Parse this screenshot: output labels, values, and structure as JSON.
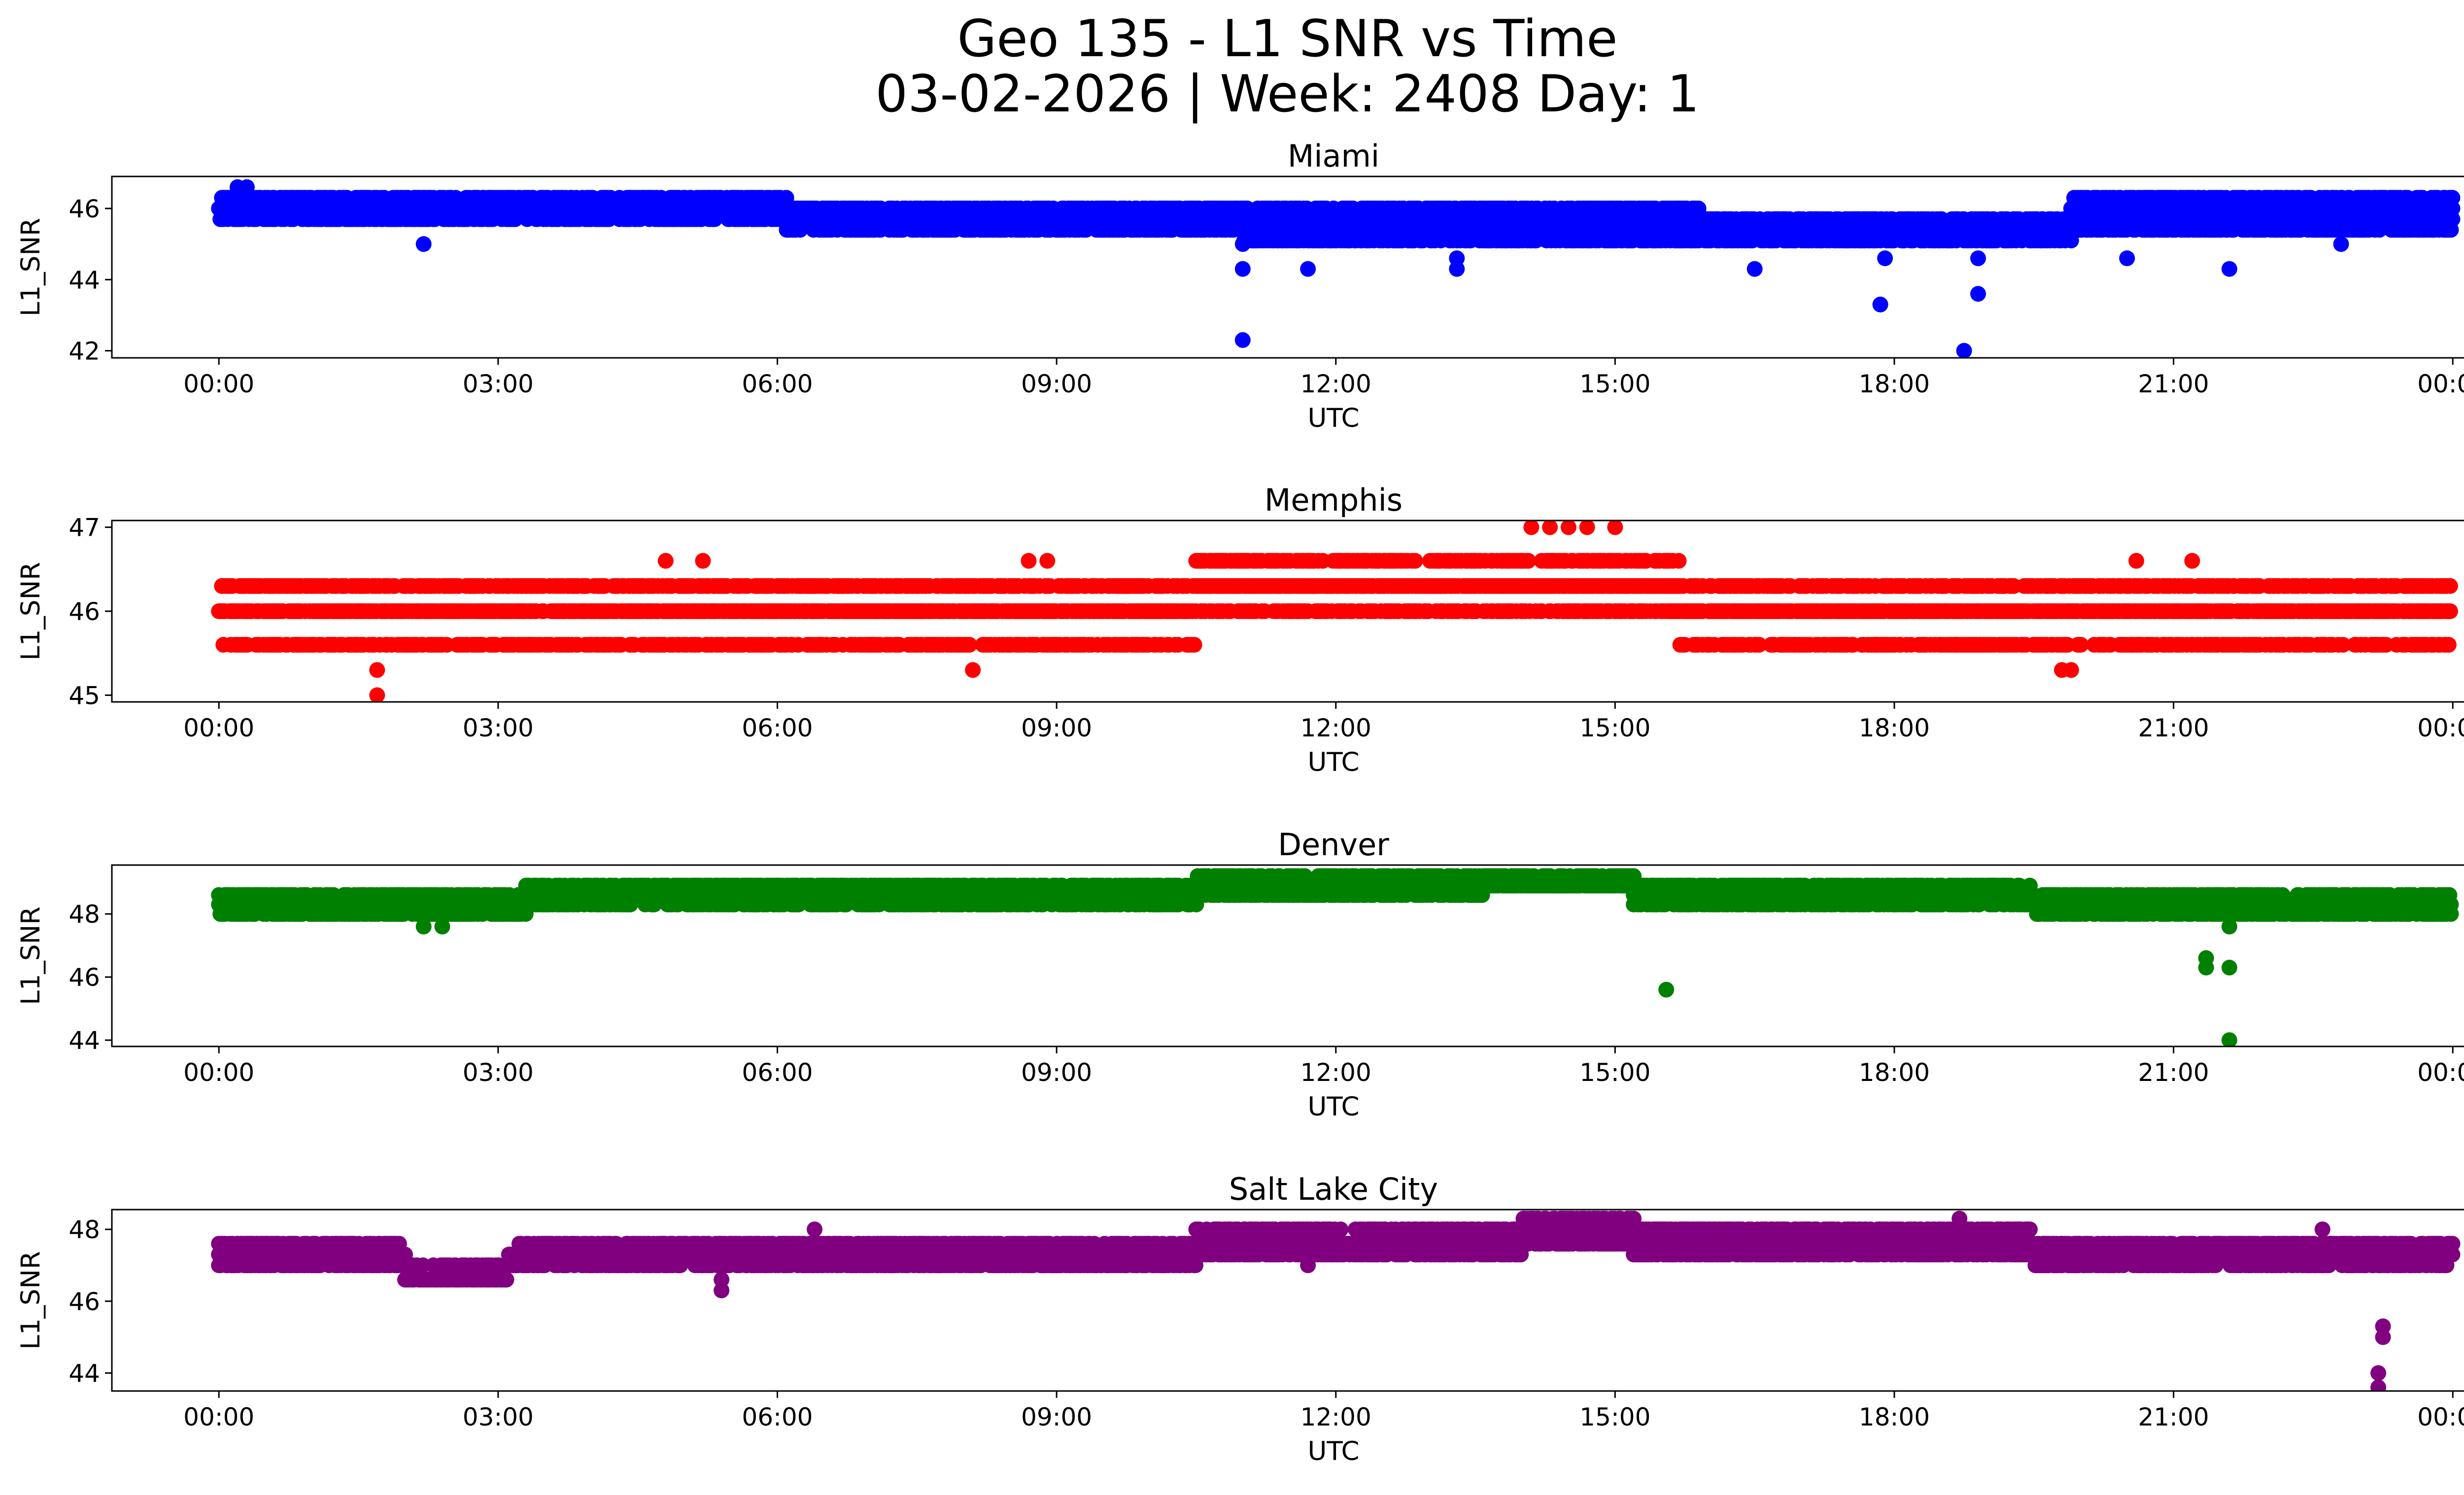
{
  "figure": {
    "title_line1": "Geo 135 - L1 SNR vs Time",
    "title_line2": "03-02-2026 | Week: 2408 Day: 1"
  },
  "chart_data": [
    {
      "type": "scatter",
      "title": "Miami",
      "xlabel": "UTC",
      "ylabel": "L1_SNR",
      "color": "#0000ff",
      "xlim_hours": [
        -1.15,
        25.1
      ],
      "ylim": [
        41.8,
        46.9
      ],
      "yticks": [
        42,
        44,
        46
      ],
      "xticks": [
        "00:00",
        "03:00",
        "06:00",
        "09:00",
        "12:00",
        "15:00",
        "18:00",
        "21:00",
        "00:00"
      ],
      "bands": [
        {
          "from": 0.0,
          "to": 6.1,
          "levels": [
            45.7,
            46.0,
            46.3
          ]
        },
        {
          "from": 6.1,
          "to": 11.0,
          "levels": [
            45.4,
            45.7,
            46.0
          ]
        },
        {
          "from": 11.0,
          "to": 15.9,
          "levels": [
            45.1,
            45.4,
            45.7,
            46.0
          ]
        },
        {
          "from": 15.9,
          "to": 19.9,
          "levels": [
            45.1,
            45.4,
            45.7
          ]
        },
        {
          "from": 19.9,
          "to": 24.0,
          "levels": [
            45.4,
            45.7,
            46.0,
            46.3
          ]
        }
      ],
      "outliers": [
        [
          0.2,
          46.6
        ],
        [
          0.3,
          46.6
        ],
        [
          2.2,
          45.0
        ],
        [
          11.0,
          42.3
        ],
        [
          11.0,
          44.3
        ],
        [
          11.0,
          45.0
        ],
        [
          11.7,
          44.3
        ],
        [
          13.3,
          44.3
        ],
        [
          13.3,
          44.6
        ],
        [
          16.5,
          44.3
        ],
        [
          17.85,
          43.3
        ],
        [
          17.9,
          44.6
        ],
        [
          18.75,
          42.0
        ],
        [
          18.9,
          43.6
        ],
        [
          18.9,
          44.6
        ],
        [
          20.5,
          44.6
        ],
        [
          20.7,
          46.3
        ],
        [
          21.6,
          44.3
        ],
        [
          22.8,
          45.0
        ]
      ]
    },
    {
      "type": "scatter",
      "title": "Memphis",
      "xlabel": "UTC",
      "ylabel": "L1_SNR",
      "color": "#ff0000",
      "xlim_hours": [
        -1.15,
        25.1
      ],
      "ylim": [
        44.92,
        47.08
      ],
      "yticks": [
        45,
        46,
        47
      ],
      "xticks": [
        "00:00",
        "03:00",
        "06:00",
        "09:00",
        "12:00",
        "15:00",
        "18:00",
        "21:00",
        "00:00"
      ],
      "bands": [
        {
          "from": 0.0,
          "to": 4.0,
          "levels": [
            45.6,
            46.0,
            46.3
          ]
        },
        {
          "from": 4.0,
          "to": 10.5,
          "levels": [
            45.6,
            46.0,
            46.3
          ]
        },
        {
          "from": 10.5,
          "to": 15.7,
          "levels": [
            46.0,
            46.3,
            46.6
          ]
        },
        {
          "from": 15.7,
          "to": 24.0,
          "levels": [
            45.6,
            46.0,
            46.3
          ]
        }
      ],
      "outliers": [
        [
          1.7,
          45.0
        ],
        [
          1.7,
          45.3
        ],
        [
          8.1,
          45.3
        ],
        [
          14.1,
          47.0
        ],
        [
          14.3,
          47.0
        ],
        [
          14.5,
          47.0
        ],
        [
          14.7,
          47.0
        ],
        [
          15.0,
          47.0
        ],
        [
          19.8,
          45.3
        ],
        [
          19.9,
          45.3
        ],
        [
          20.6,
          46.6
        ],
        [
          21.2,
          46.6
        ],
        [
          4.8,
          46.6
        ],
        [
          5.2,
          46.6
        ],
        [
          8.7,
          46.6
        ],
        [
          8.9,
          46.6
        ]
      ]
    },
    {
      "type": "scatter",
      "title": "Denver",
      "xlabel": "UTC",
      "ylabel": "L1_SNR",
      "color": "#008000",
      "xlim_hours": [
        -1.15,
        25.1
      ],
      "ylim": [
        43.8,
        49.55
      ],
      "yticks": [
        44,
        46,
        48
      ],
      "xticks": [
        "00:00",
        "03:00",
        "06:00",
        "09:00",
        "12:00",
        "15:00",
        "18:00",
        "21:00",
        "00:00"
      ],
      "bands": [
        {
          "from": 0.0,
          "to": 3.3,
          "levels": [
            48.0,
            48.3,
            48.6
          ]
        },
        {
          "from": 3.3,
          "to": 10.5,
          "levels": [
            48.3,
            48.6,
            48.9
          ]
        },
        {
          "from": 10.5,
          "to": 13.6,
          "levels": [
            48.6,
            48.9,
            49.2
          ]
        },
        {
          "from": 13.6,
          "to": 15.2,
          "levels": [
            48.9,
            49.2
          ]
        },
        {
          "from": 15.2,
          "to": 19.5,
          "levels": [
            48.3,
            48.6,
            48.9
          ]
        },
        {
          "from": 19.5,
          "to": 24.0,
          "levels": [
            48.0,
            48.3,
            48.6
          ]
        }
      ],
      "outliers": [
        [
          2.2,
          47.6
        ],
        [
          2.4,
          47.6
        ],
        [
          15.55,
          45.6
        ],
        [
          21.35,
          46.3
        ],
        [
          21.35,
          46.6
        ],
        [
          21.6,
          47.6
        ],
        [
          21.6,
          46.3
        ],
        [
          21.6,
          44.0
        ]
      ]
    },
    {
      "type": "scatter",
      "title": "Salt Lake City",
      "xlabel": "UTC",
      "ylabel": "L1_SNR",
      "color": "#800080",
      "xlim_hours": [
        -1.15,
        25.1
      ],
      "ylim": [
        43.5,
        48.55
      ],
      "yticks": [
        44,
        46,
        48
      ],
      "xticks": [
        "00:00",
        "03:00",
        "06:00",
        "09:00",
        "12:00",
        "15:00",
        "18:00",
        "21:00",
        "00:00"
      ],
      "bands": [
        {
          "from": 0.0,
          "to": 2.0,
          "levels": [
            47.0,
            47.3,
            47.6
          ]
        },
        {
          "from": 2.0,
          "to": 3.1,
          "levels": [
            46.6,
            47.0
          ]
        },
        {
          "from": 3.1,
          "to": 10.5,
          "levels": [
            47.0,
            47.3,
            47.6
          ]
        },
        {
          "from": 10.5,
          "to": 14.0,
          "levels": [
            47.3,
            47.6,
            48.0
          ]
        },
        {
          "from": 14.0,
          "to": 15.2,
          "levels": [
            47.6,
            48.0,
            48.3
          ]
        },
        {
          "from": 15.2,
          "to": 19.5,
          "levels": [
            47.3,
            47.6,
            48.0
          ]
        },
        {
          "from": 19.5,
          "to": 24.0,
          "levels": [
            47.0,
            47.3,
            47.6
          ]
        }
      ],
      "outliers": [
        [
          5.4,
          46.3
        ],
        [
          5.4,
          46.6
        ],
        [
          6.4,
          48.0
        ],
        [
          11.7,
          47.0
        ],
        [
          16.0,
          47.3
        ],
        [
          18.7,
          48.3
        ],
        [
          22.6,
          48.0
        ],
        [
          23.2,
          43.6
        ],
        [
          23.2,
          44.0
        ],
        [
          23.25,
          45.0
        ],
        [
          23.25,
          45.3
        ],
        [
          23.2,
          47.0
        ]
      ]
    }
  ]
}
